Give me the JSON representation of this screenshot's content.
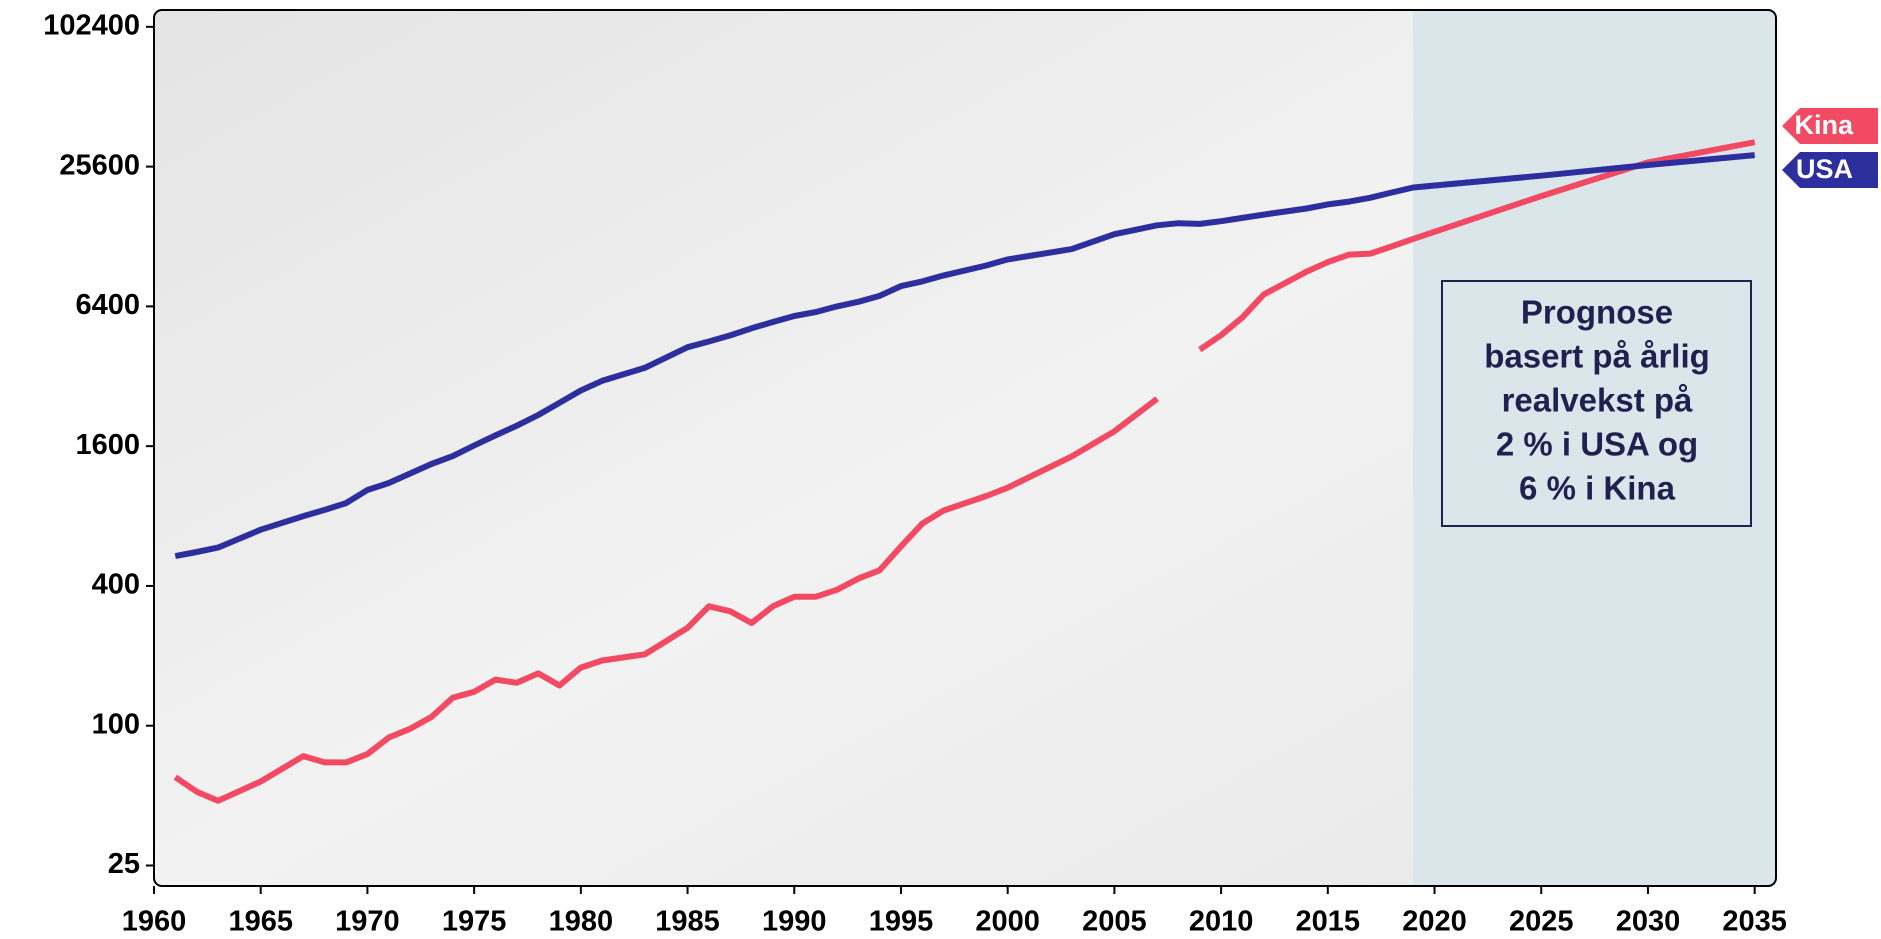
{
  "chart_data": {
    "type": "line",
    "x": [
      1961,
      1962,
      1963,
      1965,
      1967,
      1968,
      1969,
      1970,
      1971,
      1972,
      1973,
      1974,
      1975,
      1976,
      1977,
      1978,
      1979,
      1980,
      1981,
      1983,
      1985,
      1986,
      1987,
      1988,
      1989,
      1990,
      1991,
      1992,
      1993,
      1994,
      1995,
      1996,
      1997,
      1999,
      2000,
      2003,
      2005,
      2007,
      2008,
      2009,
      2010,
      2011,
      2012,
      2014,
      2015,
      2016,
      2017,
      2018,
      2019,
      2025,
      2030,
      2035
    ],
    "series": [
      {
        "name": "Kina",
        "color": "#f24a63",
        "values": [
          60,
          52,
          47.5,
          57.5,
          74,
          69.5,
          69.5,
          75.5,
          89,
          97,
          109,
          132,
          140,
          158,
          153,
          168,
          149,
          178,
          191,
          203,
          264,
          327,
          311,
          277,
          327,
          359,
          359,
          385,
          430,
          467,
          592,
          742,
          845,
          976,
          1060,
          1445,
          1855,
          2560,
          null,
          4170,
          4810,
          5740,
          7210,
          9030,
          9930,
          10700,
          10800,
          11600,
          12500,
          19100,
          26700,
          32600
        ]
      },
      {
        "name": "USA",
        "color": "#2e2f9e",
        "values": [
          538,
          560,
          585,
          699,
          800,
          850,
          910,
          1036,
          1110,
          1220,
          1340,
          1450,
          1611,
          1780,
          1960,
          2180,
          2460,
          2780,
          3060,
          3480,
          4270,
          4520,
          4800,
          5150,
          5480,
          5820,
          6050,
          6400,
          6700,
          7100,
          7830,
          8200,
          8700,
          9600,
          10200,
          11300,
          13100,
          14300,
          14600,
          14500,
          14900,
          15400,
          15900,
          16900,
          17600,
          18100,
          18800,
          19800,
          20800,
          23400,
          26000,
          28700
        ]
      }
    ],
    "xlim": [
      1960,
      2036
    ],
    "xticks": [
      1960,
      1965,
      1970,
      1975,
      1980,
      1985,
      1990,
      1995,
      2000,
      2005,
      2010,
      2015,
      2020,
      2025,
      2030,
      2035
    ],
    "ylim": [
      20.4,
      121000
    ],
    "yticks": [
      25,
      100,
      400,
      1600,
      6400,
      25600,
      102400
    ],
    "log_scale": true,
    "forecast_start": 2019,
    "forecast_color": "#dbe6ea",
    "annotation": [
      "Prognose",
      "basert på årlig",
      "realvekst på",
      "2 % i USA og",
      "6 % i Kina"
    ]
  }
}
